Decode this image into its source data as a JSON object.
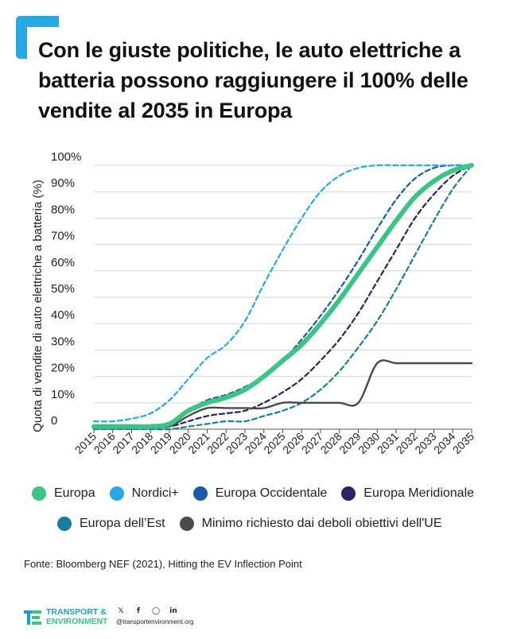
{
  "title": "Con le giuste politiche, le auto elettriche a batteria possono raggiungere il 100% delle vendite al 2035 in Europa",
  "source": "Fonte: Bloomberg NEF (2021), Hitting the EV Inflection Point",
  "brand": {
    "line1": "TRANSPORT &",
    "line2": "ENVIRONMENT",
    "handle": "@transportenvironment.org",
    "social_icons": [
      "twitter-icon",
      "facebook-icon",
      "instagram-icon",
      "linkedin-icon"
    ],
    "accent": "#1aa0d8"
  },
  "chart_data": {
    "type": "line",
    "ylabel": "Quota di vendite di auto elettriche a batteria (%)",
    "xlabel": "",
    "ylim": [
      0,
      100
    ],
    "ytick_labels": [
      "100%",
      "90%",
      "80%",
      "70%",
      "60%",
      "50%",
      "40%",
      "30%",
      "20%",
      "10%",
      "0"
    ],
    "ytick_values": [
      100,
      90,
      80,
      70,
      60,
      50,
      40,
      30,
      20,
      10,
      0
    ],
    "x": [
      2015,
      2016,
      2017,
      2018,
      2019,
      2020,
      2021,
      2022,
      2023,
      2024,
      2025,
      2026,
      2027,
      2028,
      2029,
      2030,
      2031,
      2032,
      2033,
      2034,
      2035
    ],
    "xtick_labels": [
      "2015",
      "2016",
      "2017",
      "2018",
      "2019",
      "2020",
      "2021",
      "2022",
      "2023",
      "2024",
      "2025",
      "2026",
      "2027",
      "2028",
      "2029",
      "2030",
      "2031",
      "2032",
      "2033",
      "2034",
      "2035"
    ],
    "grid": "horizontal",
    "series": [
      {
        "name": "Europa",
        "color": "#3cc487",
        "style": "solid-thick",
        "values": [
          1,
          1,
          1,
          1,
          2,
          7,
          10,
          12,
          15,
          20,
          26,
          32,
          40,
          49,
          59,
          69,
          79,
          88,
          94,
          98,
          100
        ]
      },
      {
        "name": "Nordici+",
        "color": "#26aae1",
        "style": "dashed",
        "values": [
          3,
          3,
          4,
          6,
          11,
          19,
          27,
          32,
          41,
          55,
          68,
          80,
          90,
          96,
          99,
          100,
          100,
          100,
          100,
          100,
          100
        ]
      },
      {
        "name": "Europa Occidentale",
        "color": "#1a5aa8",
        "style": "dashed",
        "values": [
          1,
          1,
          1,
          1,
          2,
          7,
          11,
          13,
          16,
          20,
          26,
          34,
          43,
          53,
          64,
          76,
          87,
          95,
          99,
          100,
          100
        ]
      },
      {
        "name": "Europa Meridionale",
        "color": "#2a2466",
        "style": "dashed",
        "values": [
          1,
          1,
          1,
          1,
          1,
          3,
          5,
          6,
          7,
          10,
          14,
          19,
          26,
          34,
          44,
          56,
          68,
          80,
          89,
          96,
          100
        ]
      },
      {
        "name": "Europa dell’Est",
        "color": "#1b7d9e",
        "style": "dashed",
        "values": [
          0,
          0,
          0,
          0,
          0,
          1,
          2,
          3,
          3,
          5,
          7,
          10,
          15,
          22,
          31,
          41,
          53,
          66,
          79,
          91,
          100
        ]
      },
      {
        "name": "Minimo richiesto dai deboli obiettivi dell'UE",
        "color": "#4a4a4a",
        "style": "solid",
        "values": [
          1,
          1,
          1,
          1,
          1,
          5,
          8,
          8,
          8,
          8,
          10,
          10,
          10,
          10,
          10,
          25,
          25,
          25,
          25,
          25,
          25
        ]
      }
    ]
  }
}
